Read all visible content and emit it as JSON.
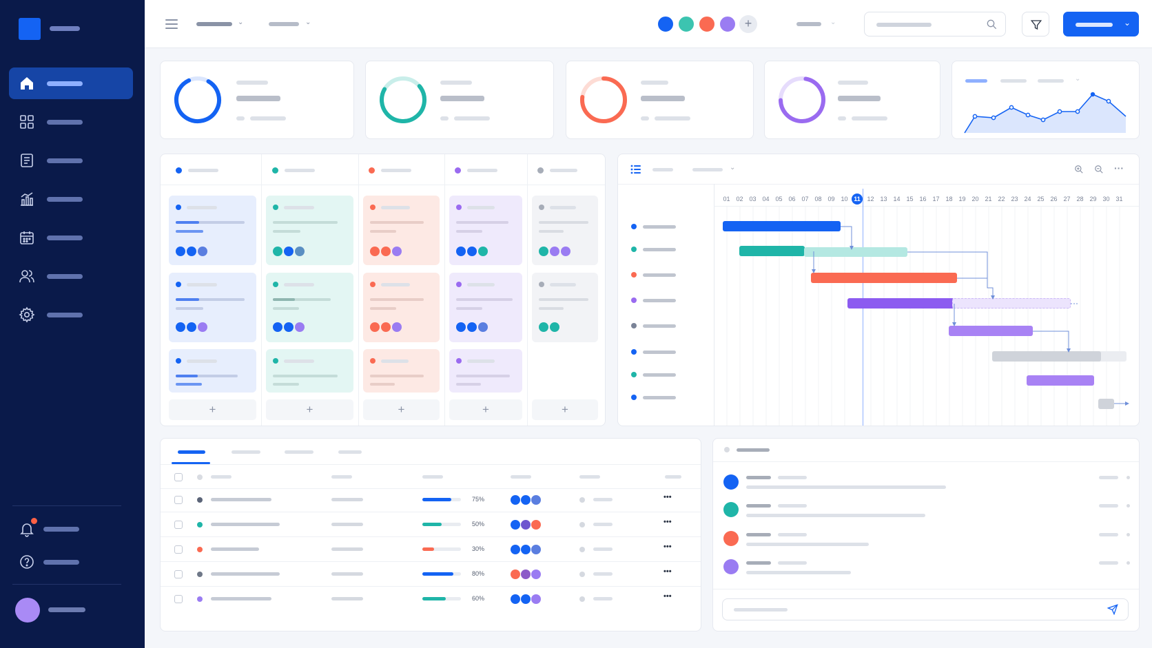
{
  "colors": {
    "sidebar_bg": "#0a1a4a",
    "accent": "#1463f3",
    "teal": "#1fb5a8",
    "coral": "#fa6a52",
    "purple": "#9a6bf0",
    "gray": "#a7adb8"
  },
  "sidebar": {
    "items": [
      {
        "icon": "home-icon",
        "active": true
      },
      {
        "icon": "grid-icon",
        "active": false
      },
      {
        "icon": "document-icon",
        "active": false
      },
      {
        "icon": "chart-icon",
        "active": false
      },
      {
        "icon": "calendar-icon",
        "active": false
      },
      {
        "icon": "users-icon",
        "active": false
      },
      {
        "icon": "settings-icon",
        "active": false
      }
    ],
    "bottom": [
      {
        "icon": "bell-icon",
        "has_notification": true
      },
      {
        "icon": "help-icon",
        "has_notification": false
      }
    ]
  },
  "topbar": {
    "icons": [
      "menu-icon",
      "chevron-down-icon",
      "search-icon",
      "filter-icon"
    ],
    "avatar_plus": "+"
  },
  "gantt": {
    "days": [
      "01",
      "02",
      "03",
      "04",
      "05",
      "06",
      "07",
      "08",
      "09",
      "10",
      "11",
      "12",
      "13",
      "14",
      "15",
      "16",
      "17",
      "18",
      "19",
      "20",
      "21",
      "22",
      "23",
      "24",
      "25",
      "26",
      "27",
      "28",
      "29",
      "30",
      "31"
    ],
    "today": "11"
  },
  "kanban": {
    "add_label": "+"
  },
  "table": {
    "rows": [
      {
        "progress_label": "75%",
        "progress": 0.75,
        "color": "#1463f3"
      },
      {
        "progress_label": "50%",
        "progress": 0.5,
        "color": "#1fb5a8"
      },
      {
        "progress_label": "30%",
        "progress": 0.3,
        "color": "#fa6a52"
      },
      {
        "progress_label": "80%",
        "progress": 0.8,
        "color": "#1463f3"
      },
      {
        "progress_label": "60%",
        "progress": 0.6,
        "color": "#1fb5a8"
      }
    ],
    "more_label": "•••"
  }
}
